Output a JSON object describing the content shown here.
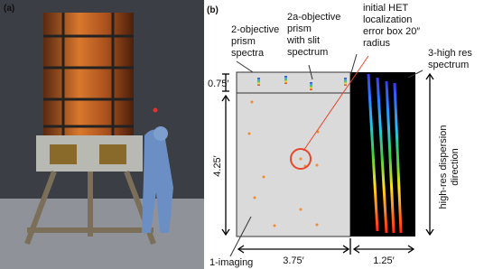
{
  "panel_a": {
    "label": "(a)"
  },
  "panel_b": {
    "label": "(b)",
    "callouts": {
      "prism_spectra": [
        "2-objective",
        "prism",
        "spectra"
      ],
      "slit_spectrum": [
        "2a-objective",
        "prism",
        "with slit",
        "spectrum"
      ],
      "error_box": [
        "initial HET",
        "localization",
        "error box 20″",
        "radius"
      ],
      "high_res": [
        "3-high res",
        "spectrum"
      ],
      "imaging": [
        "1-imaging"
      ]
    },
    "dimensions": {
      "top_strip": "0.75′",
      "field_height": "4.25′",
      "field_width": "3.75′",
      "high_res_width": "1.25′"
    },
    "dispersion": [
      "high-res dispersion",
      "direction"
    ]
  }
}
